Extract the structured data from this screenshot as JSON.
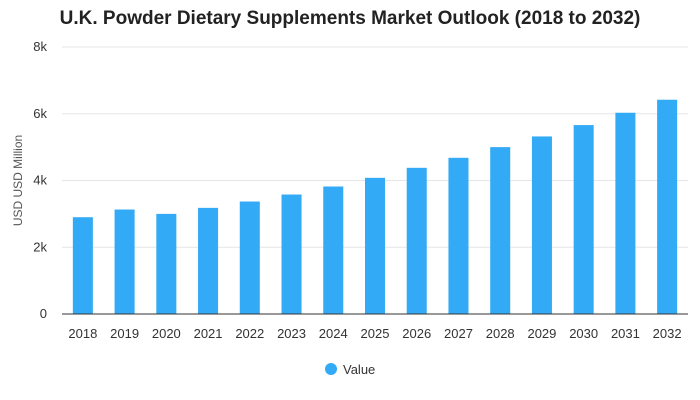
{
  "chart_data": {
    "type": "bar",
    "title": "U.K. Powder Dietary Supplements Market Outlook (2018 to 2032)",
    "xlabel": "",
    "ylabel": "USD USD Million",
    "categories": [
      "2018",
      "2019",
      "2020",
      "2021",
      "2022",
      "2023",
      "2024",
      "2025",
      "2026",
      "2027",
      "2028",
      "2029",
      "2030",
      "2031",
      "2032"
    ],
    "series": [
      {
        "name": "Value",
        "values": [
          2900,
          3130,
          3000,
          3180,
          3370,
          3580,
          3820,
          4080,
          4380,
          4680,
          5000,
          5320,
          5660,
          6030,
          6420
        ]
      }
    ],
    "ylim": [
      0,
      8000
    ],
    "yticks": [
      0,
      2000,
      4000,
      6000,
      8000
    ],
    "ytick_labels": [
      "0",
      "2k",
      "4k",
      "6k",
      "8k"
    ],
    "grid": true,
    "legend_position": "bottom-center",
    "colors": {
      "bar": "#33aaf5",
      "grid": "#e6e6e6",
      "axis": "#333333"
    }
  }
}
